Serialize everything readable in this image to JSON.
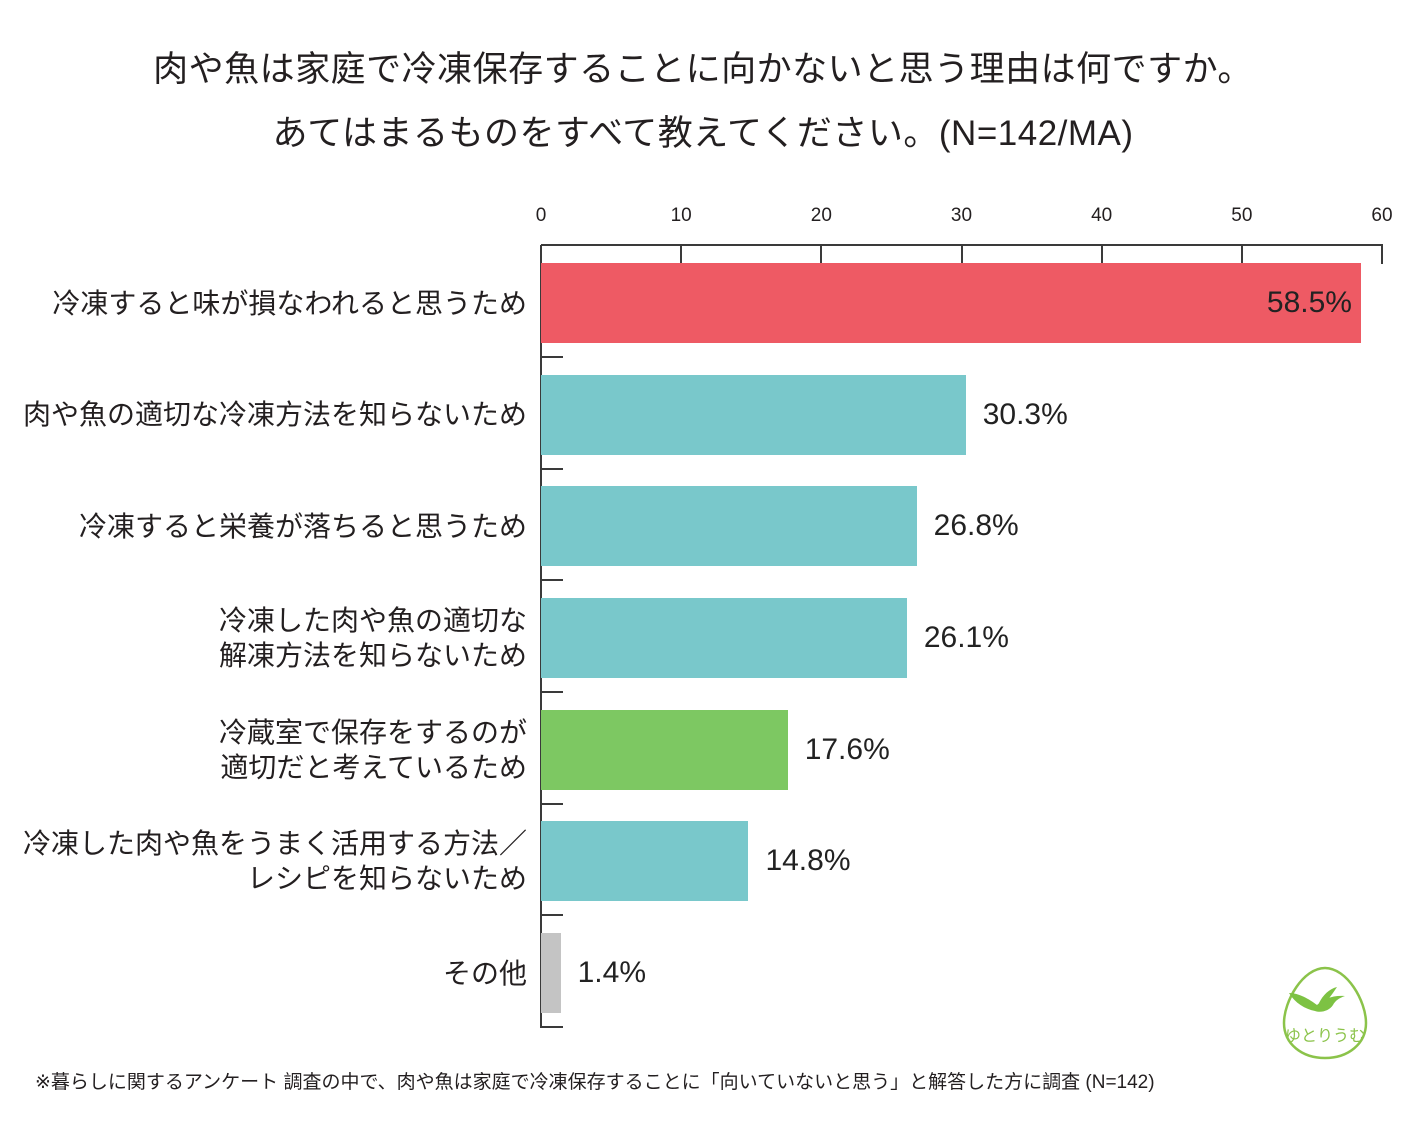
{
  "chart_data": {
    "type": "bar",
    "title": [
      "肉や魚は家庭で冷凍保存することに向かないと思う理由は何ですか。",
      "あてはまるものをすべて教えてください。(N=142/MA)"
    ],
    "categories": [
      [
        "冷凍すると味が損なわれると思うため"
      ],
      [
        "肉や魚の適切な冷凍方法を知らないため"
      ],
      [
        "冷凍すると栄養が落ちると思うため"
      ],
      [
        "冷凍した肉や魚の適切な",
        "解凍方法を知らないため"
      ],
      [
        "冷蔵室で保存をするのが",
        "適切だと考えているため"
      ],
      [
        "冷凍した肉や魚をうまく活用する方法／",
        "レシピを知らないため"
      ],
      [
        "その他"
      ]
    ],
    "values": [
      58.5,
      30.3,
      26.8,
      26.1,
      17.6,
      14.8,
      1.4
    ],
    "value_labels": [
      "58.5%",
      "30.3%",
      "26.8%",
      "26.1%",
      "17.6%",
      "14.8%",
      "1.4%"
    ],
    "colors": [
      "#EE5A64",
      "#79C8CB",
      "#79C8CB",
      "#79C8CB",
      "#7DC862",
      "#79C8CB",
      "#C4C4C4"
    ],
    "xlim": [
      0,
      60
    ],
    "xticks": [
      0,
      10,
      20,
      30,
      40,
      50,
      60
    ],
    "grid": false,
    "note": "※暮らしに関するアンケート 調査の中で、肉や魚は家庭で冷凍保存することに「向いていないと思う」と解答した方に調査 (N=142)"
  },
  "logo": {
    "text": "ゆとりうむ",
    "color": "#8BC34A",
    "bird_color": "#7DC243"
  }
}
